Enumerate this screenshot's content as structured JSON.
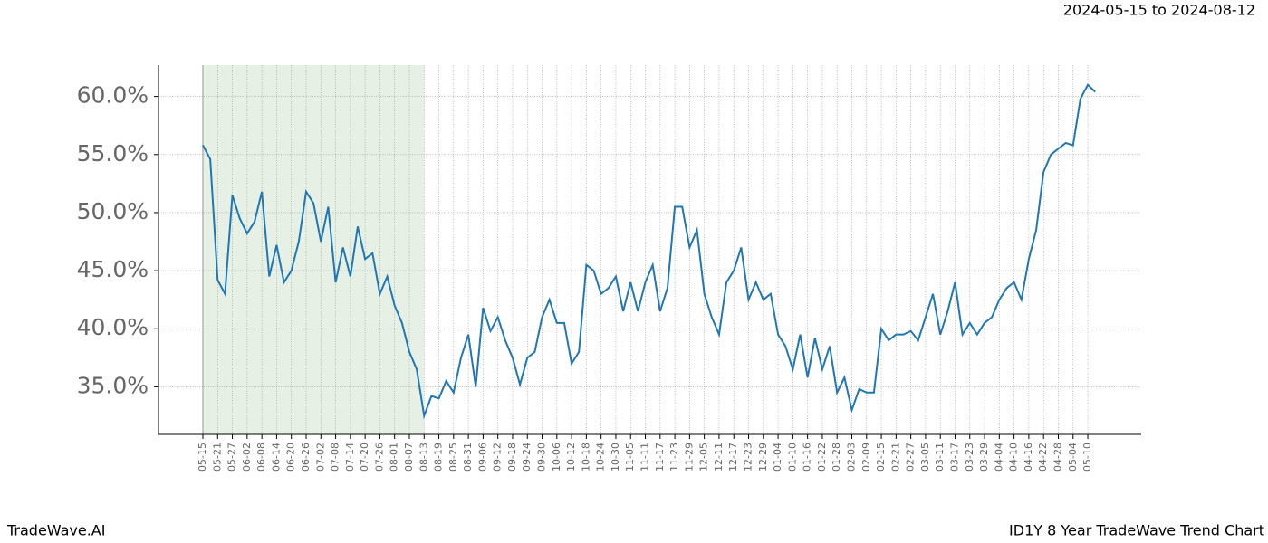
{
  "chart_data": {
    "type": "line",
    "title": "2024-05-15 to 2024-08-12",
    "footer_left": "TradeWave.AI",
    "footer_right": "ID1Y 8 Year TradeWave Trend Chart",
    "color": "#1f77b4",
    "highlight": {
      "start": "05-15",
      "end": "08-13",
      "color": "#e6f0e4"
    },
    "grid": true,
    "x": [
      "05-15",
      "05-18",
      "05-21",
      "05-24",
      "05-27",
      "05-30",
      "06-02",
      "06-05",
      "06-08",
      "06-11",
      "06-14",
      "06-17",
      "06-20",
      "06-23",
      "06-26",
      "06-29",
      "07-02",
      "07-05",
      "07-08",
      "07-11",
      "07-14",
      "07-17",
      "07-20",
      "07-23",
      "07-26",
      "07-29",
      "08-01",
      "08-04",
      "08-07",
      "08-10",
      "08-13",
      "08-16",
      "08-19",
      "08-22",
      "08-25",
      "08-28",
      "08-31",
      "09-03",
      "09-06",
      "09-09",
      "09-12",
      "09-15",
      "09-18",
      "09-21",
      "09-24",
      "09-27",
      "09-30",
      "10-03",
      "10-06",
      "10-09",
      "10-12",
      "10-15",
      "10-18",
      "10-21",
      "10-24",
      "10-27",
      "10-30",
      "11-02",
      "11-05",
      "11-08",
      "11-11",
      "11-14",
      "11-17",
      "11-20",
      "11-23",
      "11-26",
      "11-29",
      "12-02",
      "12-05",
      "12-08",
      "12-11",
      "12-14",
      "12-17",
      "12-20",
      "12-23",
      "12-26",
      "12-29",
      "01-01",
      "01-04",
      "01-07",
      "01-10",
      "01-13",
      "01-16",
      "01-19",
      "01-22",
      "01-25",
      "01-28",
      "01-31",
      "02-03",
      "02-06",
      "02-09",
      "02-12",
      "02-15",
      "02-18",
      "02-21",
      "02-24",
      "02-27",
      "03-02",
      "03-05",
      "03-08",
      "03-11",
      "03-14",
      "03-17",
      "03-20",
      "03-23",
      "03-26",
      "03-29",
      "04-01",
      "04-04",
      "04-07",
      "04-10",
      "04-13",
      "04-16",
      "04-19",
      "04-22",
      "04-25",
      "04-28",
      "05-01",
      "05-04",
      "05-07",
      "05-10",
      "05-13"
    ],
    "values": [
      55.8,
      54.6,
      44.2,
      43.0,
      51.5,
      49.5,
      48.2,
      49.2,
      51.8,
      44.5,
      47.2,
      44.0,
      45.0,
      47.5,
      51.8,
      50.8,
      47.5,
      50.5,
      44.0,
      47.0,
      44.5,
      48.8,
      46.0,
      46.5,
      43.0,
      44.5,
      42.0,
      40.5,
      38.0,
      36.5,
      32.5,
      34.2,
      34.0,
      35.5,
      34.5,
      37.5,
      39.5,
      35.0,
      41.8,
      39.8,
      41.0,
      39.0,
      37.5,
      35.2,
      37.5,
      38.0,
      41.0,
      42.5,
      40.5,
      40.5,
      37.0,
      38.0,
      45.5,
      45.0,
      43.0,
      43.5,
      44.5,
      41.5,
      44.0,
      41.5,
      44.0,
      45.5,
      41.5,
      43.5,
      50.5,
      50.5,
      47.0,
      48.5,
      43.0,
      41.0,
      39.5,
      44.0,
      45.0,
      47.0,
      42.5,
      44.0,
      42.5,
      43.0,
      39.5,
      38.5,
      36.5,
      39.5,
      35.8,
      39.2,
      36.5,
      38.5,
      34.5,
      35.8,
      33.0,
      34.8,
      34.5,
      34.5,
      40.0,
      39.0,
      39.5,
      39.5,
      39.8,
      39.0,
      41.0,
      43.0,
      39.5,
      41.5,
      44.0,
      39.5,
      40.5,
      39.5,
      40.5,
      41.0,
      42.5,
      43.5,
      44.0,
      42.5,
      46.0,
      48.5,
      53.5,
      55.0,
      55.5,
      56.0,
      55.8,
      59.8,
      61.0,
      60.4
    ],
    "xticks": [
      "05-15",
      "05-21",
      "05-27",
      "06-02",
      "06-08",
      "06-14",
      "06-20",
      "06-26",
      "07-02",
      "07-08",
      "07-14",
      "07-20",
      "07-26",
      "08-01",
      "08-07",
      "08-13",
      "08-19",
      "08-25",
      "08-31",
      "09-06",
      "09-12",
      "09-18",
      "09-24",
      "09-30",
      "10-06",
      "10-12",
      "10-18",
      "10-24",
      "10-30",
      "11-05",
      "11-11",
      "11-17",
      "11-23",
      "11-29",
      "12-05",
      "12-11",
      "12-17",
      "12-23",
      "12-29",
      "01-04",
      "01-10",
      "01-16",
      "01-22",
      "01-28",
      "02-03",
      "02-09",
      "02-15",
      "02-21",
      "02-27",
      "03-05",
      "03-11",
      "03-17",
      "03-23",
      "03-29",
      "04-04",
      "04-10",
      "04-16",
      "04-22",
      "04-28",
      "05-04",
      "05-10"
    ],
    "ylim": [
      30.9,
      62.7
    ],
    "yticks": [
      {
        "value": 35,
        "label": "35.0%"
      },
      {
        "value": 40,
        "label": "40.0%"
      },
      {
        "value": 45,
        "label": "45.0%"
      },
      {
        "value": 50,
        "label": "50.0%"
      },
      {
        "value": 55,
        "label": "55.0%"
      },
      {
        "value": 60,
        "label": "60.0%"
      }
    ]
  }
}
